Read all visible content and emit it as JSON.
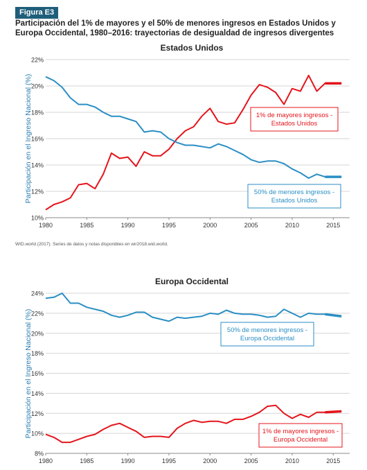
{
  "figure_badge": "Figura E3",
  "figure_title": "Participación del 1% de mayores y el 50% de menores ingresos en Estados Unidos y Europa Occidental, 1980–2016: trayectorias de desigualdad de ingresos divergentes",
  "source_note": "WID.world (2017). Series de datos y notas disponibles en wir2018.wid.world.",
  "colors": {
    "top1": "#e4141b",
    "bottom50": "#2a8ec4",
    "badge": "#1f5e7a",
    "grid": "#d5d5d5"
  },
  "chart_data": [
    {
      "type": "line",
      "title": "Estados Unidos",
      "ylabel": "Participación en el Ingreso Nacional (%)",
      "xlim": [
        1980,
        2017
      ],
      "ylim": [
        10,
        22
      ],
      "x_ticks": [
        1980,
        1985,
        1990,
        1995,
        2000,
        2005,
        2010,
        2015
      ],
      "y_ticks": [
        10,
        12,
        14,
        16,
        18,
        20,
        22
      ],
      "y_tick_labels": [
        "10%",
        "12%",
        "14%",
        "16%",
        "18%",
        "20%",
        "22%"
      ],
      "x": [
        1980,
        1981,
        1982,
        1983,
        1984,
        1985,
        1986,
        1987,
        1988,
        1989,
        1990,
        1991,
        1992,
        1993,
        1994,
        1995,
        1996,
        1997,
        1998,
        1999,
        2000,
        2001,
        2002,
        2003,
        2004,
        2005,
        2006,
        2007,
        2008,
        2009,
        2010,
        2011,
        2012,
        2013,
        2014,
        2015,
        2016
      ],
      "series": [
        {
          "key": "top1",
          "label_lines": [
            "1% de mayores ingresos -",
            "Estados Unidos"
          ],
          "values": [
            10.6,
            11.0,
            11.2,
            11.5,
            12.5,
            12.6,
            12.2,
            13.3,
            14.9,
            14.5,
            14.6,
            13.9,
            15.0,
            14.7,
            14.7,
            15.2,
            16.0,
            16.6,
            16.9,
            17.7,
            18.3,
            17.3,
            17.1,
            17.2,
            18.2,
            19.3,
            20.1,
            19.9,
            19.5,
            18.6,
            19.8,
            19.6,
            20.8,
            19.6,
            20.2,
            20.2,
            20.2
          ]
        },
        {
          "key": "bottom50",
          "label_lines": [
            "50% de menores ingresos -",
            "Estados Unidos"
          ],
          "values": [
            20.7,
            20.4,
            19.9,
            19.1,
            18.6,
            18.6,
            18.4,
            18.0,
            17.7,
            17.7,
            17.5,
            17.3,
            16.5,
            16.6,
            16.5,
            16.0,
            15.7,
            15.5,
            15.5,
            15.4,
            15.3,
            15.6,
            15.4,
            15.1,
            14.8,
            14.4,
            14.2,
            14.3,
            14.3,
            14.1,
            13.7,
            13.4,
            13.0,
            13.3,
            13.1,
            13.1,
            13.1
          ]
        }
      ]
    },
    {
      "type": "line",
      "title": "Europa Occidental",
      "ylabel": "Participación en el Ingreso Nacional (%)",
      "xlim": [
        1980,
        2017
      ],
      "ylim": [
        8,
        24
      ],
      "x_ticks": [
        1980,
        1985,
        1990,
        1995,
        2000,
        2005,
        2010,
        2015
      ],
      "y_ticks": [
        8,
        10,
        12,
        14,
        16,
        18,
        20,
        22,
        24
      ],
      "y_tick_labels": [
        "8%",
        "10%",
        "12%",
        "14%",
        "16%",
        "18%",
        "20%",
        "22%",
        "24%"
      ],
      "x": [
        1980,
        1981,
        1982,
        1983,
        1984,
        1985,
        1986,
        1987,
        1988,
        1989,
        1990,
        1991,
        1992,
        1993,
        1994,
        1995,
        1996,
        1997,
        1998,
        1999,
        2000,
        2001,
        2002,
        2003,
        2004,
        2005,
        2006,
        2007,
        2008,
        2009,
        2010,
        2011,
        2012,
        2013,
        2014,
        2015,
        2016
      ],
      "series": [
        {
          "key": "bottom50",
          "label_lines": [
            "50% de menores ingresos -",
            "Europa Occidental"
          ],
          "values": [
            23.5,
            23.6,
            24.0,
            23.0,
            23.0,
            22.6,
            22.4,
            22.2,
            21.8,
            21.6,
            21.8,
            22.1,
            22.1,
            21.6,
            21.4,
            21.2,
            21.6,
            21.5,
            21.6,
            21.7,
            22.0,
            21.9,
            22.3,
            22.0,
            21.9,
            21.9,
            21.8,
            21.6,
            21.7,
            22.4,
            22.0,
            21.6,
            22.0,
            21.9,
            21.9,
            21.8,
            21.7
          ]
        },
        {
          "key": "top1",
          "label_lines": [
            "1% de mayores ingresos -",
            "Europa Occidental"
          ],
          "values": [
            9.9,
            9.6,
            9.1,
            9.1,
            9.4,
            9.7,
            9.9,
            10.4,
            10.8,
            11.0,
            10.6,
            10.2,
            9.6,
            9.7,
            9.7,
            9.6,
            10.5,
            11.0,
            11.3,
            11.1,
            11.2,
            11.2,
            11.0,
            11.4,
            11.4,
            11.7,
            12.1,
            12.7,
            12.8,
            12.0,
            11.5,
            11.9,
            11.6,
            12.1,
            12.1,
            12.1,
            12.2
          ]
        }
      ]
    }
  ]
}
